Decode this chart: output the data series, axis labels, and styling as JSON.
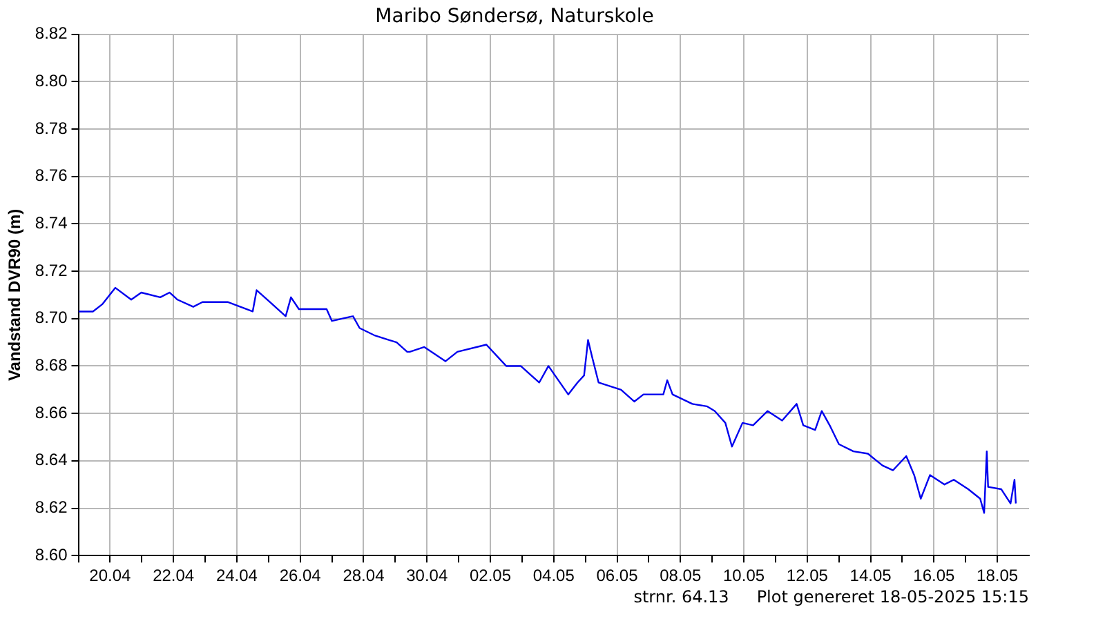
{
  "chart_data": {
    "type": "line",
    "title": "Maribo Søndersø, Naturskole",
    "ylabel": "Vandstand DVR90 (m)",
    "annotations": [
      "strnr. 64.13",
      "Plot genereret 18-05-2025 15:15"
    ],
    "xlim": [
      "2025-04-19",
      "2025-05-19"
    ],
    "xticks": [
      {
        "value": "2025-04-19",
        "label": null
      },
      {
        "value": "2025-04-20",
        "label": "20.04"
      },
      {
        "value": "2025-04-21",
        "label": null
      },
      {
        "value": "2025-04-22",
        "label": "22.04"
      },
      {
        "value": "2025-04-23",
        "label": null
      },
      {
        "value": "2025-04-24",
        "label": "24.04"
      },
      {
        "value": "2025-04-25",
        "label": null
      },
      {
        "value": "2025-04-26",
        "label": "26.04"
      },
      {
        "value": "2025-04-27",
        "label": null
      },
      {
        "value": "2025-04-28",
        "label": "28.04"
      },
      {
        "value": "2025-04-29",
        "label": null
      },
      {
        "value": "2025-04-30",
        "label": "30.04"
      },
      {
        "value": "2025-05-01",
        "label": null
      },
      {
        "value": "2025-05-02",
        "label": "02.05"
      },
      {
        "value": "2025-05-03",
        "label": null
      },
      {
        "value": "2025-05-04",
        "label": "04.05"
      },
      {
        "value": "2025-05-05",
        "label": null
      },
      {
        "value": "2025-05-06",
        "label": "06.05"
      },
      {
        "value": "2025-05-07",
        "label": null
      },
      {
        "value": "2025-05-08",
        "label": "08.05"
      },
      {
        "value": "2025-05-09",
        "label": null
      },
      {
        "value": "2025-05-10",
        "label": "10.05"
      },
      {
        "value": "2025-05-11",
        "label": null
      },
      {
        "value": "2025-05-12",
        "label": "12.05"
      },
      {
        "value": "2025-05-13",
        "label": null
      },
      {
        "value": "2025-05-14",
        "label": "14.05"
      },
      {
        "value": "2025-05-15",
        "label": null
      },
      {
        "value": "2025-05-16",
        "label": "16.05"
      },
      {
        "value": "2025-05-17",
        "label": null
      },
      {
        "value": "2025-05-18",
        "label": "18.05"
      }
    ],
    "ylim": [
      8.6,
      8.82
    ],
    "yticks": [
      {
        "value": 8.6,
        "label": "8.60"
      },
      {
        "value": 8.62,
        "label": "8.62"
      },
      {
        "value": 8.64,
        "label": "8.64"
      },
      {
        "value": 8.66,
        "label": "8.66"
      },
      {
        "value": 8.68,
        "label": "8.68"
      },
      {
        "value": 8.7,
        "label": "8.70"
      },
      {
        "value": 8.72,
        "label": "8.72"
      },
      {
        "value": 8.74,
        "label": "8.74"
      },
      {
        "value": 8.76,
        "label": "8.76"
      },
      {
        "value": 8.78,
        "label": "8.78"
      },
      {
        "value": 8.8,
        "label": "8.80"
      },
      {
        "value": 8.82,
        "label": "8.82"
      }
    ],
    "grid": true,
    "legend": false,
    "marker": "none",
    "line_style": "solid",
    "series": [
      {
        "color": "#0000ee",
        "x": [
          "2025-04-19T00:00",
          "2025-04-19T11:00",
          "2025-04-19T18:00",
          "2025-04-20T04:00",
          "2025-04-20T16:00",
          "2025-04-20T23:40",
          "2025-04-21T14:00",
          "2025-04-21T21:00",
          "2025-04-22T03:00",
          "2025-04-22T15:00",
          "2025-04-22T22:00",
          "2025-04-23T17:00",
          "2025-04-24T12:00",
          "2025-04-24T15:00",
          "2025-04-25T01:00",
          "2025-04-25T13:00",
          "2025-04-25T17:00",
          "2025-04-25T23:00",
          "2025-04-26T20:00",
          "2025-04-27T00:00",
          "2025-04-27T16:00",
          "2025-04-27T21:00",
          "2025-04-28T08:00",
          "2025-04-28T19:00",
          "2025-04-29T01:00",
          "2025-04-29T09:00",
          "2025-04-29T11:00",
          "2025-04-29T22:00",
          "2025-04-30T14:00",
          "2025-04-30T23:00",
          "2025-05-01T21:00",
          "2025-05-02T12:00",
          "2025-05-02T23:00",
          "2025-05-03T13:00",
          "2025-05-03T20:00",
          "2025-05-04T11:00",
          "2025-05-04T18:00",
          "2025-05-04T23:00",
          "2025-05-05T02:00",
          "2025-05-05T05:00",
          "2025-05-05T10:00",
          "2025-05-06T03:00",
          "2025-05-06T13:00",
          "2025-05-06T20:00",
          "2025-05-07T11:00",
          "2025-05-07T14:00",
          "2025-05-07T18:00",
          "2025-05-08T09:00",
          "2025-05-08T20:00",
          "2025-05-09T02:00",
          "2025-05-09T10:00",
          "2025-05-09T15:00",
          "2025-05-09T23:00",
          "2025-05-10T07:00",
          "2025-05-10T18:00",
          "2025-05-11T05:00",
          "2025-05-11T16:00",
          "2025-05-11T21:00",
          "2025-05-12T06:00",
          "2025-05-12T11:00",
          "2025-05-12T17:00",
          "2025-05-13T00:00",
          "2025-05-13T11:00",
          "2025-05-13T22:00",
          "2025-05-14T09:00",
          "2025-05-14T17:00",
          "2025-05-15T03:00",
          "2025-05-15T09:00",
          "2025-05-15T14:00",
          "2025-05-15T21:00",
          "2025-05-16T08:00",
          "2025-05-16T15:00",
          "2025-05-17T02:00",
          "2025-05-17T11:00",
          "2025-05-17T14:00",
          "2025-05-17T16:00",
          "2025-05-17T17:00",
          "2025-05-18T03:00",
          "2025-05-18T10:00",
          "2025-05-18T13:00",
          "2025-05-18T14:00"
        ],
        "values": [
          8.703,
          8.703,
          8.706,
          8.713,
          8.708,
          8.711,
          8.709,
          8.711,
          8.708,
          8.705,
          8.707,
          8.707,
          8.703,
          8.712,
          8.707,
          8.701,
          8.709,
          8.704,
          8.704,
          8.699,
          8.701,
          8.696,
          8.693,
          8.691,
          8.69,
          8.686,
          8.686,
          8.688,
          8.682,
          8.686,
          8.689,
          8.68,
          8.68,
          8.673,
          8.68,
          8.668,
          8.673,
          8.676,
          8.691,
          8.684,
          8.673,
          8.67,
          8.665,
          8.668,
          8.668,
          8.674,
          8.668,
          8.664,
          8.663,
          8.661,
          8.656,
          8.646,
          8.656,
          8.655,
          8.661,
          8.657,
          8.664,
          8.655,
          8.653,
          8.661,
          8.655,
          8.647,
          8.644,
          8.643,
          8.638,
          8.636,
          8.642,
          8.634,
          8.624,
          8.634,
          8.63,
          8.632,
          8.628,
          8.624,
          8.618,
          8.644,
          8.629,
          8.628,
          8.622,
          8.632,
          8.622
        ]
      }
    ]
  }
}
